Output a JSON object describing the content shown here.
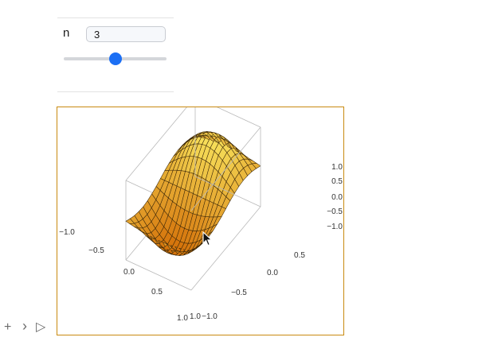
{
  "controls": {
    "variable_label": "n",
    "value": "3",
    "slider_value": 3
  },
  "plot": {
    "type": "surface3d",
    "mesh_color": "#3a2608",
    "surface_color_light": "#f7e05a",
    "surface_color_dark": "#d4720a",
    "frame_color": "#c98a10",
    "x_ticks": [
      "−1.0",
      "−0.5",
      "0.0",
      "0.5",
      "1.0"
    ],
    "y_ticks": [
      "−1.0",
      "−0.5",
      "0.0",
      "0.5"
    ],
    "z_ticks": [
      "1.0",
      "0.5",
      "0.0",
      "−0.5",
      "−1.0"
    ],
    "left_axis_label": "−1.0",
    "right_axis_label": "1.0"
  },
  "toolbar": {
    "add_glyph": "+",
    "chevron_glyph": "›",
    "run_glyph": "▷"
  }
}
